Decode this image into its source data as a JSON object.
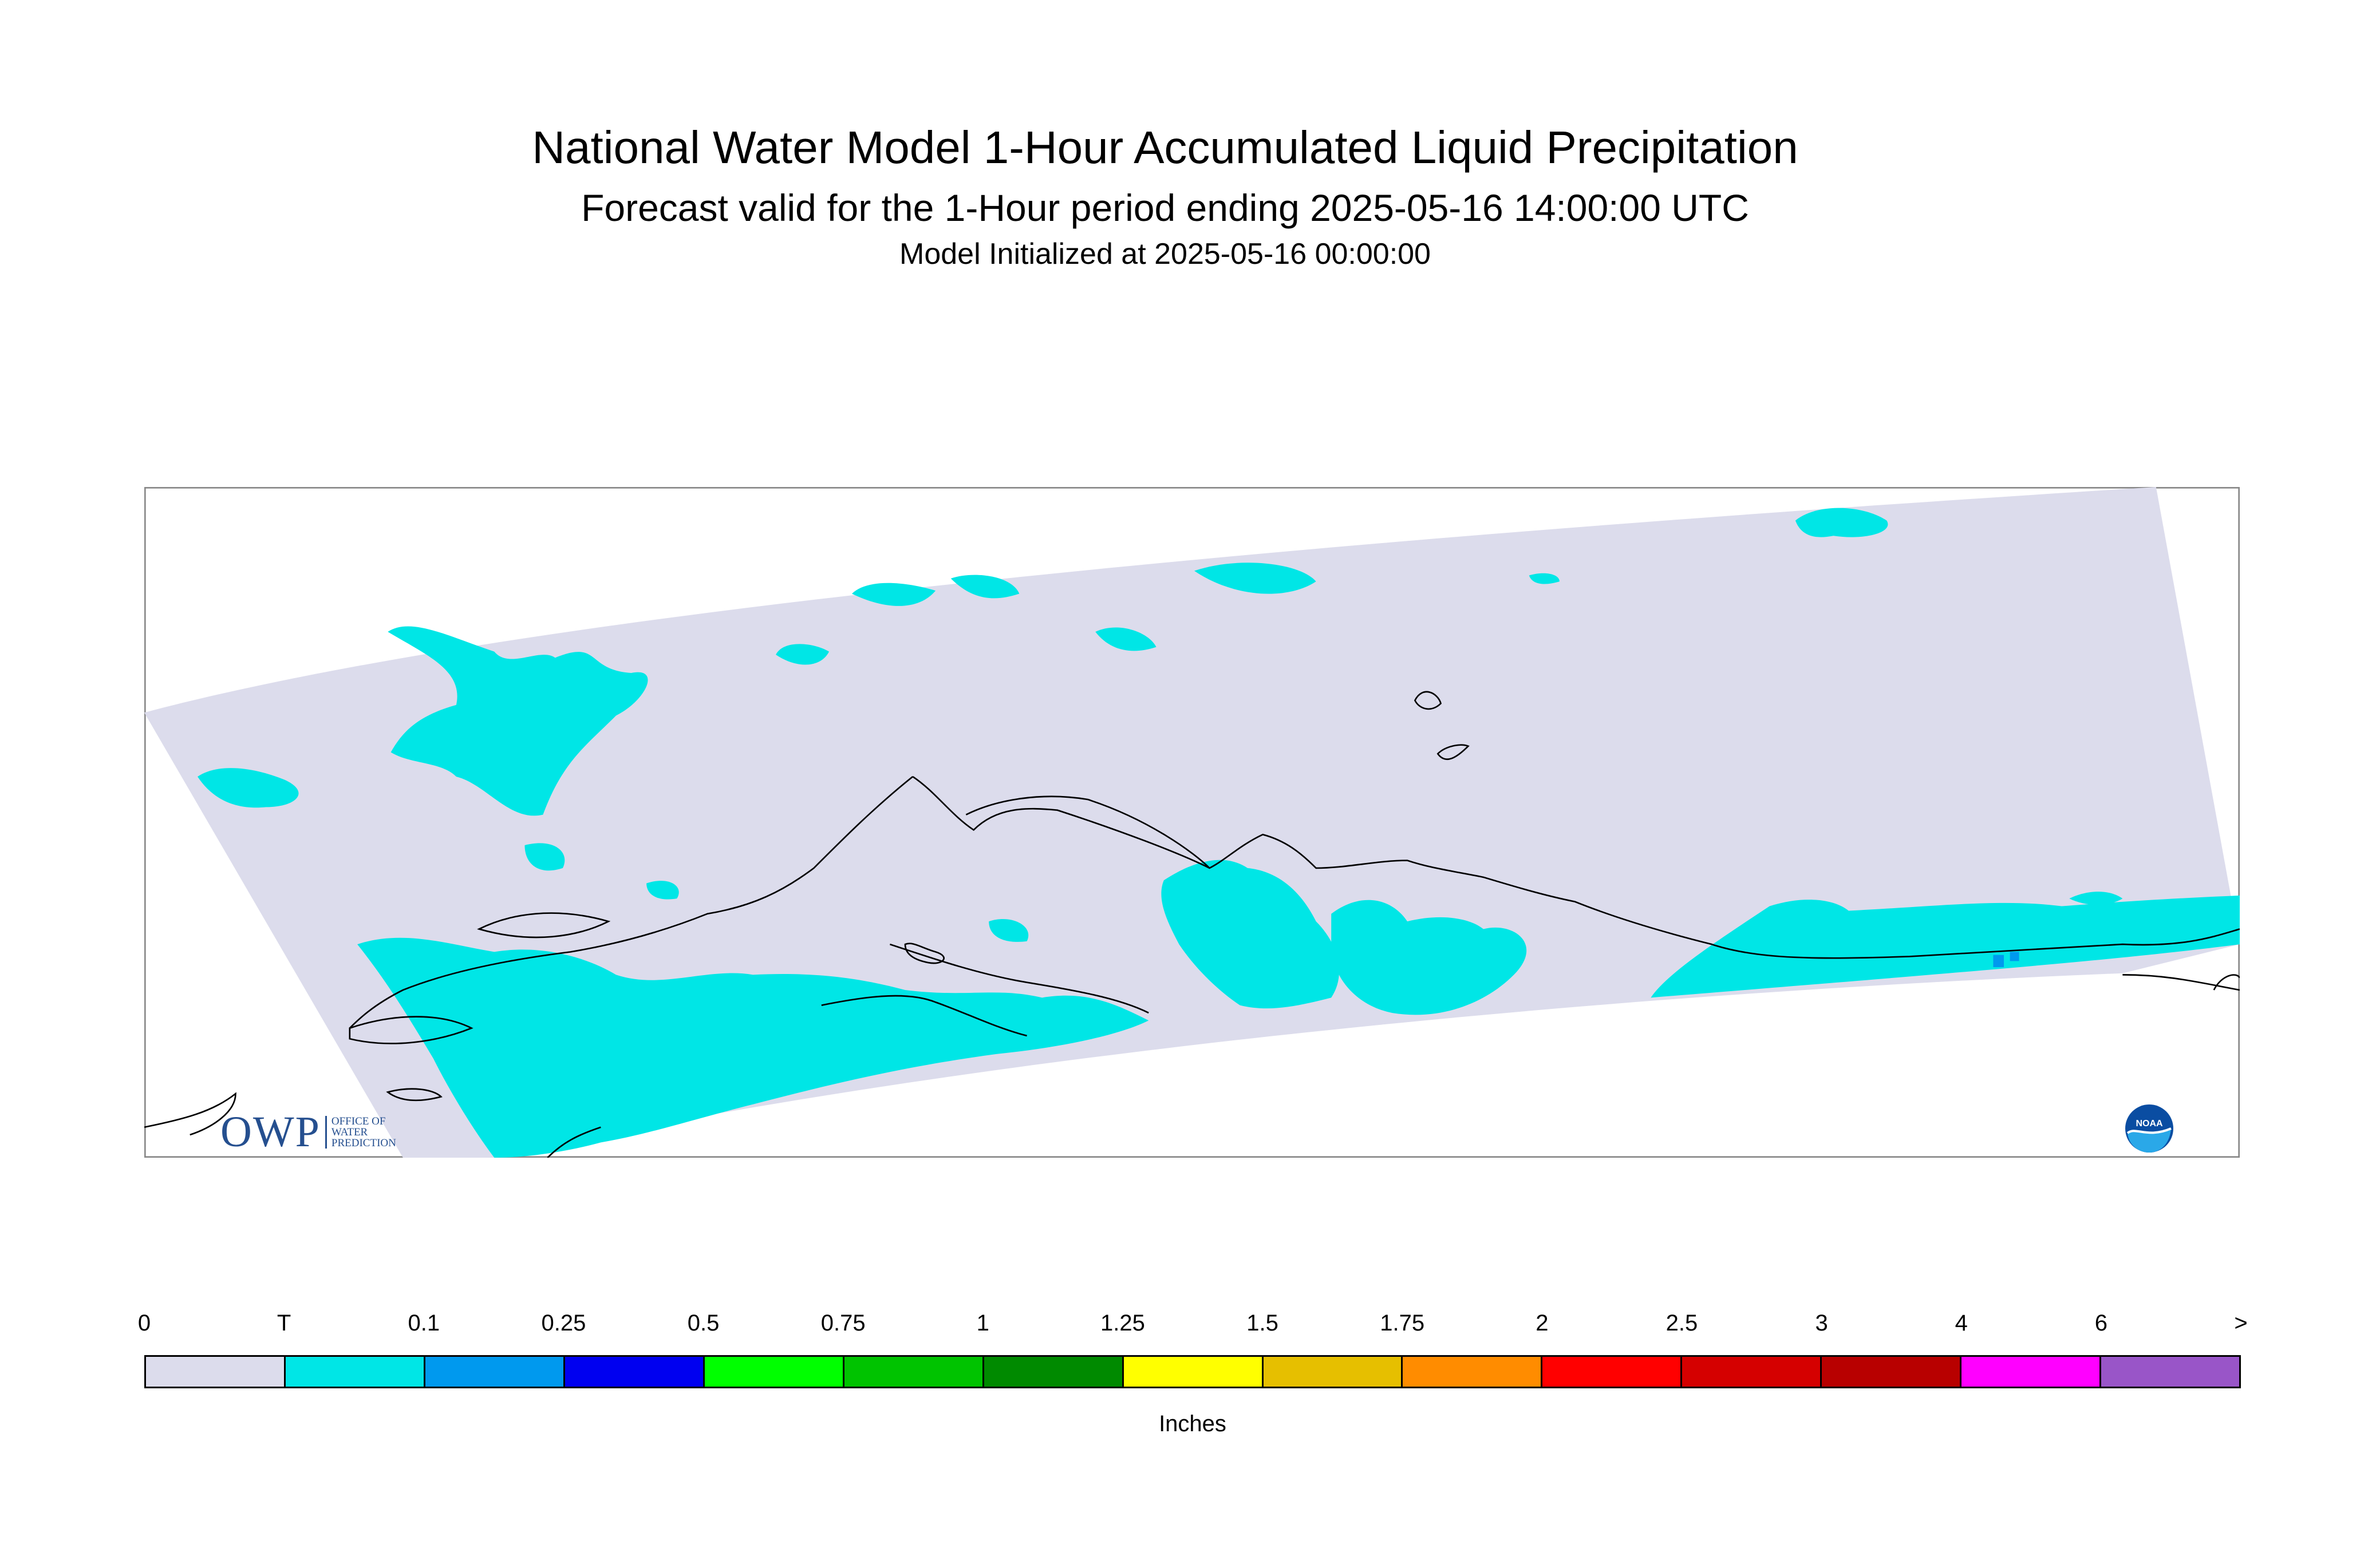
{
  "title": "National Water Model 1-Hour Accumulated Liquid Precipitation",
  "subtitle": "Forecast valid for the 1-Hour period ending 2025-05-16 14:00:00 UTC",
  "init_line": "Model Initialized at 2025-05-16 00:00:00",
  "legend": {
    "units": "Inches",
    "tick_labels": [
      "0",
      "T",
      "0.1",
      "0.25",
      "0.5",
      "0.75",
      "1",
      "1.25",
      "1.5",
      "1.75",
      "2",
      "2.5",
      "3",
      "4",
      "6",
      ">"
    ],
    "colors": [
      "#dcdcec",
      "#00e6e6",
      "#0099ee",
      "#0000f0",
      "#00ff00",
      "#00c300",
      "#008a00",
      "#ffff00",
      "#e6bf00",
      "#ff8c00",
      "#ff0000",
      "#d50000",
      "#b80000",
      "#ff00ff",
      "#9955c8"
    ]
  },
  "map": {
    "domain_fill": "#dcdcec",
    "trace_color": "#00e6e6",
    "light_color": "#0099ee",
    "coast_color": "#000000"
  },
  "logos": {
    "owp_mark": "OWP",
    "owp_text": [
      "OFFICE OF",
      "WATER",
      "PREDICTION"
    ],
    "noaa_text": "NOAA"
  }
}
